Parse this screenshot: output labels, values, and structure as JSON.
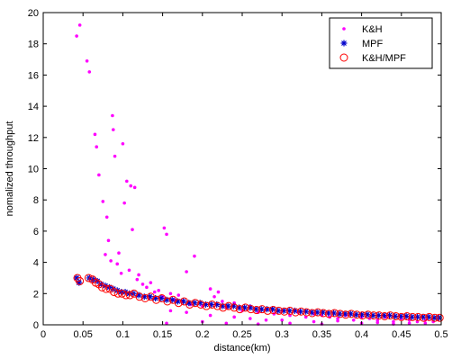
{
  "chart_data": {
    "type": "scatter",
    "xlabel": "distance(km)",
    "ylabel": "nomalized throughput",
    "xlim": [
      0,
      0.5
    ],
    "ylim": [
      0,
      20
    ],
    "xticks": [
      "0",
      "0.05",
      "0.1",
      "0.15",
      "0.2",
      "0.25",
      "0.3",
      "0.35",
      "0.4",
      "0.45",
      "0.5"
    ],
    "yticks": [
      "0",
      "2",
      "4",
      "6",
      "8",
      "10",
      "12",
      "14",
      "16",
      "18",
      "20"
    ],
    "grid": false,
    "legend_position": "top-right",
    "series": [
      {
        "name": "K&H",
        "color": "#ff00ff",
        "marker": "dot",
        "x": [
          0.042,
          0.046,
          0.055,
          0.058,
          0.065,
          0.067,
          0.07,
          0.075,
          0.08,
          0.082,
          0.087,
          0.088,
          0.09,
          0.095,
          0.1,
          0.102,
          0.105,
          0.11,
          0.112,
          0.115,
          0.085,
          0.078,
          0.093,
          0.098,
          0.108,
          0.118,
          0.12,
          0.125,
          0.13,
          0.135,
          0.14,
          0.145,
          0.15,
          0.152,
          0.155,
          0.16,
          0.165,
          0.17,
          0.175,
          0.18,
          0.185,
          0.19,
          0.2,
          0.21,
          0.215,
          0.22,
          0.225,
          0.23,
          0.24,
          0.25,
          0.26,
          0.27,
          0.28,
          0.29,
          0.3,
          0.31,
          0.32,
          0.33,
          0.34,
          0.35,
          0.36,
          0.37,
          0.38,
          0.39,
          0.4,
          0.41,
          0.42,
          0.43,
          0.44,
          0.45,
          0.46,
          0.47,
          0.48,
          0.49,
          0.155,
          0.2,
          0.23,
          0.27,
          0.31,
          0.35,
          0.4,
          0.44,
          0.48,
          0.16,
          0.21,
          0.26,
          0.3,
          0.34,
          0.37,
          0.42,
          0.46,
          0.18,
          0.24,
          0.28
        ],
        "y": [
          18.5,
          19.2,
          16.9,
          16.2,
          12.2,
          11.4,
          9.6,
          7.9,
          6.9,
          5.4,
          13.4,
          12.5,
          10.8,
          4.6,
          11.6,
          7.8,
          9.2,
          8.9,
          6.1,
          8.8,
          4.1,
          4.5,
          3.9,
          3.3,
          3.5,
          2.9,
          3.2,
          2.6,
          2.4,
          2.7,
          2.1,
          2.2,
          1.8,
          6.2,
          5.8,
          2.0,
          1.6,
          1.9,
          1.5,
          3.4,
          1.3,
          4.4,
          1.2,
          2.3,
          1.8,
          2.1,
          1.5,
          1.1,
          1.4,
          0.9,
          1.2,
          0.8,
          1.0,
          0.7,
          0.9,
          0.6,
          0.8,
          0.5,
          0.7,
          0.6,
          0.5,
          0.4,
          0.6,
          0.3,
          0.5,
          0.4,
          0.3,
          0.5,
          0.2,
          0.4,
          0.3,
          0.2,
          0.3,
          0.2,
          0.1,
          0.2,
          0.1,
          0.05,
          0.1,
          0.05,
          0.1,
          0.05,
          0.1,
          0.9,
          0.6,
          0.4,
          0.3,
          0.2,
          0.25,
          0.15,
          0.1,
          0.8,
          0.5,
          0.3
        ]
      },
      {
        "name": "MPF",
        "color": "#0000cc",
        "marker": "star",
        "x": [
          0.042,
          0.045,
          0.058,
          0.063,
          0.068,
          0.073,
          0.078,
          0.083,
          0.088,
          0.093,
          0.098,
          0.103,
          0.108,
          0.113,
          0.12,
          0.127,
          0.134,
          0.141,
          0.148,
          0.155,
          0.162,
          0.169,
          0.176,
          0.183,
          0.19,
          0.197,
          0.204,
          0.211,
          0.218,
          0.225,
          0.232,
          0.239,
          0.246,
          0.253,
          0.26,
          0.267,
          0.274,
          0.281,
          0.288,
          0.295,
          0.302,
          0.309,
          0.316,
          0.323,
          0.33,
          0.337,
          0.344,
          0.351,
          0.358,
          0.365,
          0.372,
          0.379,
          0.386,
          0.393,
          0.4,
          0.407,
          0.414,
          0.421,
          0.428,
          0.435,
          0.442,
          0.449,
          0.456,
          0.463,
          0.47,
          0.477,
          0.484,
          0.491,
          0.497
        ],
        "y": [
          3.0,
          2.7,
          3.0,
          2.9,
          2.8,
          2.6,
          2.5,
          2.4,
          2.3,
          2.2,
          2.1,
          2.1,
          2.0,
          2.0,
          1.9,
          1.8,
          1.8,
          1.7,
          1.7,
          1.6,
          1.6,
          1.5,
          1.5,
          1.4,
          1.4,
          1.4,
          1.3,
          1.3,
          1.3,
          1.2,
          1.2,
          1.2,
          1.1,
          1.1,
          1.1,
          1.0,
          1.0,
          1.0,
          1.0,
          0.9,
          0.9,
          0.9,
          0.9,
          0.85,
          0.85,
          0.8,
          0.8,
          0.8,
          0.75,
          0.75,
          0.7,
          0.7,
          0.7,
          0.65,
          0.65,
          0.65,
          0.6,
          0.6,
          0.6,
          0.6,
          0.55,
          0.55,
          0.55,
          0.5,
          0.5,
          0.5,
          0.5,
          0.45,
          0.45
        ]
      },
      {
        "name": "K&H/MPF",
        "color": "#ff0000",
        "marker": "circle",
        "x": [
          0.043,
          0.046,
          0.057,
          0.062,
          0.066,
          0.07,
          0.074,
          0.079,
          0.084,
          0.089,
          0.094,
          0.099,
          0.104,
          0.109,
          0.114,
          0.121,
          0.128,
          0.135,
          0.142,
          0.149,
          0.156,
          0.163,
          0.17,
          0.177,
          0.184,
          0.191,
          0.198,
          0.205,
          0.212,
          0.219,
          0.226,
          0.233,
          0.24,
          0.247,
          0.254,
          0.261,
          0.268,
          0.275,
          0.282,
          0.289,
          0.296,
          0.303,
          0.31,
          0.317,
          0.324,
          0.331,
          0.338,
          0.345,
          0.352,
          0.359,
          0.366,
          0.373,
          0.38,
          0.387,
          0.394,
          0.401,
          0.408,
          0.415,
          0.422,
          0.429,
          0.436,
          0.443,
          0.45,
          0.457,
          0.464,
          0.471,
          0.478,
          0.485,
          0.492,
          0.498
        ],
        "y": [
          3.0,
          2.8,
          3.0,
          2.9,
          2.7,
          2.6,
          2.4,
          2.3,
          2.3,
          2.1,
          2.0,
          2.0,
          1.9,
          1.9,
          2.0,
          1.8,
          1.7,
          1.8,
          1.6,
          1.7,
          1.5,
          1.6,
          1.4,
          1.5,
          1.3,
          1.4,
          1.3,
          1.2,
          1.3,
          1.2,
          1.1,
          1.2,
          1.1,
          1.0,
          1.1,
          1.0,
          0.95,
          1.0,
          0.9,
          0.95,
          0.9,
          0.85,
          0.9,
          0.8,
          0.85,
          0.8,
          0.75,
          0.8,
          0.75,
          0.7,
          0.75,
          0.7,
          0.65,
          0.7,
          0.65,
          0.6,
          0.65,
          0.6,
          0.6,
          0.55,
          0.6,
          0.55,
          0.5,
          0.55,
          0.5,
          0.5,
          0.45,
          0.5,
          0.45,
          0.45
        ]
      }
    ]
  }
}
